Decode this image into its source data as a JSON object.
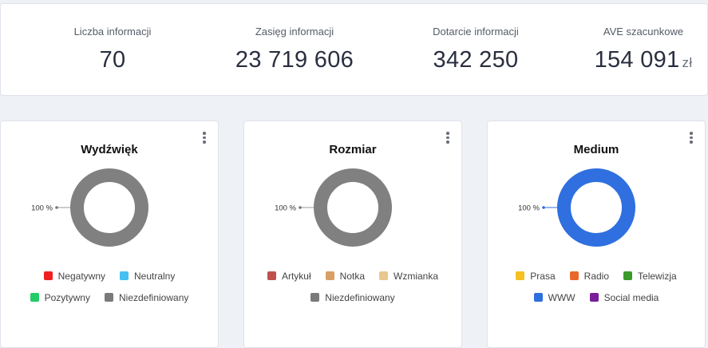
{
  "stats": [
    {
      "label": "Liczba informacji",
      "value": "70",
      "unit": ""
    },
    {
      "label": "Zasięg informacji",
      "value": "23 719 606",
      "unit": ""
    },
    {
      "label": "Dotarcie informacji",
      "value": "342 250",
      "unit": ""
    },
    {
      "label": "AVE szacunkowe",
      "value": "154 091",
      "unit": "zł"
    }
  ],
  "cards": [
    {
      "title": "Wydźwięk",
      "donut_color": "#808080",
      "slice_label": "100 %",
      "legend_rows": [
        [
          {
            "label": "Negatywny",
            "color": "#f02020"
          },
          {
            "label": "Neutralny",
            "color": "#45c0f0"
          }
        ],
        [
          {
            "label": "Pozytywny",
            "color": "#22cc66"
          },
          {
            "label": "Niezdefiniowany",
            "color": "#7a7a7a"
          }
        ]
      ]
    },
    {
      "title": "Rozmiar",
      "donut_color": "#808080",
      "slice_label": "100 %",
      "legend_rows": [
        [
          {
            "label": "Artykuł",
            "color": "#c0504d"
          },
          {
            "label": "Notka",
            "color": "#d9a066"
          },
          {
            "label": "Wzmianka",
            "color": "#e8c890"
          }
        ],
        [
          {
            "label": "Niezdefiniowany",
            "color": "#7a7a7a"
          }
        ]
      ]
    },
    {
      "title": "Medium",
      "donut_color": "#2f6fdf",
      "slice_label": "100 %",
      "legend_rows": [
        [
          {
            "label": "Prasa",
            "color": "#f5c022"
          },
          {
            "label": "Radio",
            "color": "#e8682a"
          },
          {
            "label": "Telewizja",
            "color": "#3a9a2a"
          }
        ],
        [
          {
            "label": "WWW",
            "color": "#2f6fdf"
          },
          {
            "label": "Social media",
            "color": "#7a1f9a"
          }
        ]
      ]
    }
  ]
}
